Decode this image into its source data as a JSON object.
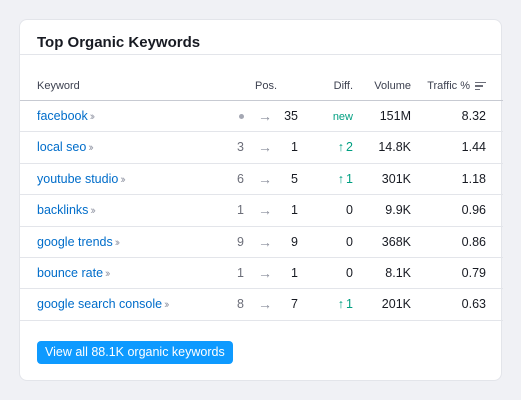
{
  "widget": {
    "title": "Top Organic Keywords",
    "cta_label": "View all 88.1K organic keywords",
    "colors": {
      "link": "#006dca",
      "positive": "#009f81",
      "button": "#0e9aff"
    }
  },
  "table": {
    "headers": {
      "keyword": "Keyword",
      "position": "Pos.",
      "difficulty": "Diff.",
      "volume": "Volume",
      "traffic": "Traffic %"
    },
    "rows": [
      {
        "keyword": "facebook",
        "prev": "",
        "prev_is_dot": true,
        "pos": "35",
        "diff": "new",
        "diff_type": "new",
        "volume": "151M",
        "traffic": "8.32"
      },
      {
        "keyword": "local seo",
        "prev": "3",
        "prev_is_dot": false,
        "pos": "1",
        "diff": "2",
        "diff_type": "up",
        "volume": "14.8K",
        "traffic": "1.44"
      },
      {
        "keyword": "youtube studio",
        "prev": "6",
        "prev_is_dot": false,
        "pos": "5",
        "diff": "1",
        "diff_type": "up",
        "volume": "301K",
        "traffic": "1.18"
      },
      {
        "keyword": "backlinks",
        "prev": "1",
        "prev_is_dot": false,
        "pos": "1",
        "diff": "0",
        "diff_type": "zero",
        "volume": "9.9K",
        "traffic": "0.96"
      },
      {
        "keyword": "google trends",
        "prev": "9",
        "prev_is_dot": false,
        "pos": "9",
        "diff": "0",
        "diff_type": "zero",
        "volume": "368K",
        "traffic": "0.86"
      },
      {
        "keyword": "bounce rate",
        "prev": "1",
        "prev_is_dot": false,
        "pos": "1",
        "diff": "0",
        "diff_type": "zero",
        "volume": "8.1K",
        "traffic": "0.79"
      },
      {
        "keyword": "google search console",
        "prev": "8",
        "prev_is_dot": false,
        "pos": "7",
        "diff": "1",
        "diff_type": "up",
        "volume": "201K",
        "traffic": "0.63"
      }
    ]
  },
  "icons": {
    "row_chevron": "double-chevron-right-icon",
    "position_arrow": "arrow-right-icon",
    "diff_up": "arrow-up-icon",
    "sort": "sort-lines-icon"
  }
}
